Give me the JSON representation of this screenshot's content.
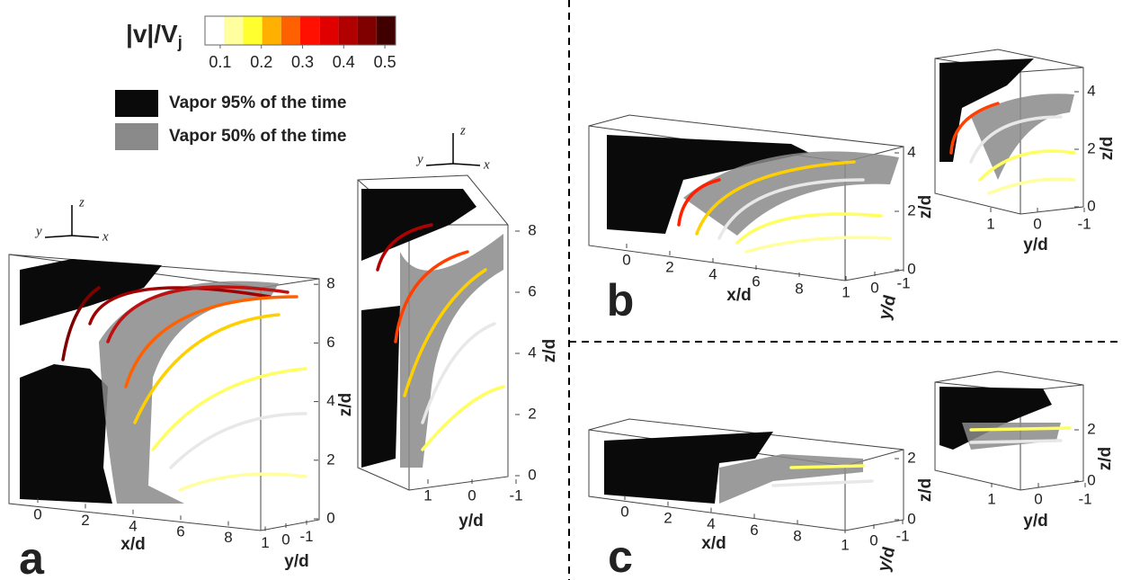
{
  "colorbar": {
    "title": "|v|/V",
    "title_sub": "j",
    "colors": [
      "#ffffff",
      "#ffffa0",
      "#ffff30",
      "#ffb000",
      "#ff6000",
      "#ff1000",
      "#e00000",
      "#b00000",
      "#800000",
      "#400000"
    ],
    "ticks": [
      0.1,
      0.2,
      0.3,
      0.4,
      0.5
    ],
    "clim": [
      0.063,
      0.526
    ]
  },
  "legend": [
    {
      "label": "Vapor 95% of the time",
      "color": "#0a0a0a"
    },
    {
      "label": "Vapor 50% of the time",
      "color": "#8a8a8a"
    }
  ],
  "panels": [
    {
      "label": "a",
      "views": [
        {
          "xticks": [
            0,
            2,
            4,
            6,
            8
          ],
          "yticks": [
            1,
            0,
            -1
          ],
          "zticks": [
            0,
            2,
            4,
            6,
            8
          ],
          "xlabel": "x/d",
          "ylabel": "y/d",
          "zlabel": "z/d",
          "triad": {
            "x": "x",
            "y": "y",
            "z": "z"
          }
        },
        {
          "yticks": [
            1,
            0,
            -1
          ],
          "zticks": [
            0,
            2,
            4,
            6,
            8
          ],
          "ylabel": "y/d",
          "zlabel": "z/d",
          "triad": {
            "x": "x",
            "y": "y",
            "z": "z"
          }
        }
      ]
    },
    {
      "label": "b",
      "views": [
        {
          "xticks": [
            0,
            2,
            4,
            6,
            8
          ],
          "yticks": [
            1,
            0,
            -1
          ],
          "zticks": [
            0,
            2,
            4
          ],
          "xlabel": "x/d",
          "ylabel": "y/d",
          "zlabel": "z/d"
        },
        {
          "yticks": [
            1,
            0,
            -1
          ],
          "zticks": [
            0,
            2,
            4
          ],
          "ylabel": "y/d",
          "zlabel": "z/d"
        }
      ]
    },
    {
      "label": "c",
      "views": [
        {
          "xticks": [
            0,
            2,
            4,
            6,
            8
          ],
          "yticks": [
            1,
            0,
            -1
          ],
          "zticks": [
            0,
            2
          ],
          "xlabel": "x/d",
          "ylabel": "y/d",
          "zlabel": "z/d"
        },
        {
          "yticks": [
            1,
            0,
            -1
          ],
          "zticks": [
            0,
            2
          ],
          "ylabel": "y/d",
          "zlabel": "z/d"
        }
      ]
    }
  ]
}
